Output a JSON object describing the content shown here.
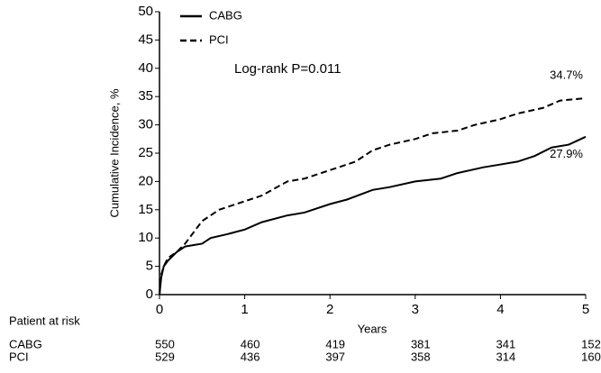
{
  "chart_data": {
    "type": "line",
    "y_label": "Cumulative Incidence, %",
    "x_label": "Years",
    "annotation": "Log-rank P=0.011",
    "xlim": [
      0,
      5
    ],
    "xticks": [
      0,
      1,
      2,
      3,
      4,
      5
    ],
    "ylim": [
      0,
      50
    ],
    "yticks": [
      0,
      5,
      10,
      15,
      20,
      25,
      30,
      35,
      40,
      45,
      50
    ],
    "series": [
      {
        "name": "CABG",
        "color": "#000000",
        "dash": "solid",
        "end_label": "27.9%",
        "x": [
          0,
          0.02,
          0.05,
          0.1,
          0.2,
          0.3,
          0.5,
          0.6,
          0.8,
          1,
          1.2,
          1.5,
          1.7,
          2,
          2.2,
          2.5,
          2.7,
          3,
          3.3,
          3.5,
          3.8,
          4,
          4.2,
          4.4,
          4.6,
          4.8,
          5
        ],
        "values": [
          0,
          3,
          5,
          6,
          7.5,
          8.5,
          9,
          10,
          10.7,
          11.5,
          12.8,
          14,
          14.5,
          16,
          16.8,
          18.5,
          19,
          20,
          20.5,
          21.5,
          22.5,
          23,
          23.5,
          24.5,
          26,
          26.5,
          27.9
        ]
      },
      {
        "name": "PCI",
        "color": "#000000",
        "dash": "dashed",
        "end_label": "34.7%",
        "x": [
          0,
          0.02,
          0.05,
          0.1,
          0.2,
          0.3,
          0.4,
          0.5,
          0.7,
          1,
          1.2,
          1.5,
          1.7,
          2,
          2.3,
          2.5,
          2.7,
          3,
          3.2,
          3.5,
          3.7,
          4,
          4.2,
          4.5,
          4.7,
          5
        ],
        "values": [
          0,
          3.5,
          5,
          6.5,
          7.5,
          9,
          11,
          13,
          15,
          16.5,
          17.5,
          20,
          20.5,
          22,
          23.5,
          25.5,
          26.5,
          27.5,
          28.5,
          29,
          30,
          31,
          32,
          33,
          34.3,
          34.7
        ]
      }
    ],
    "risk_table": {
      "title": "Patient at risk",
      "rows": [
        {
          "name": "CABG",
          "values": [
            550,
            460,
            419,
            381,
            341,
            152
          ]
        },
        {
          "name": "PCI",
          "values": [
            529,
            436,
            397,
            358,
            314,
            160
          ]
        }
      ]
    }
  }
}
